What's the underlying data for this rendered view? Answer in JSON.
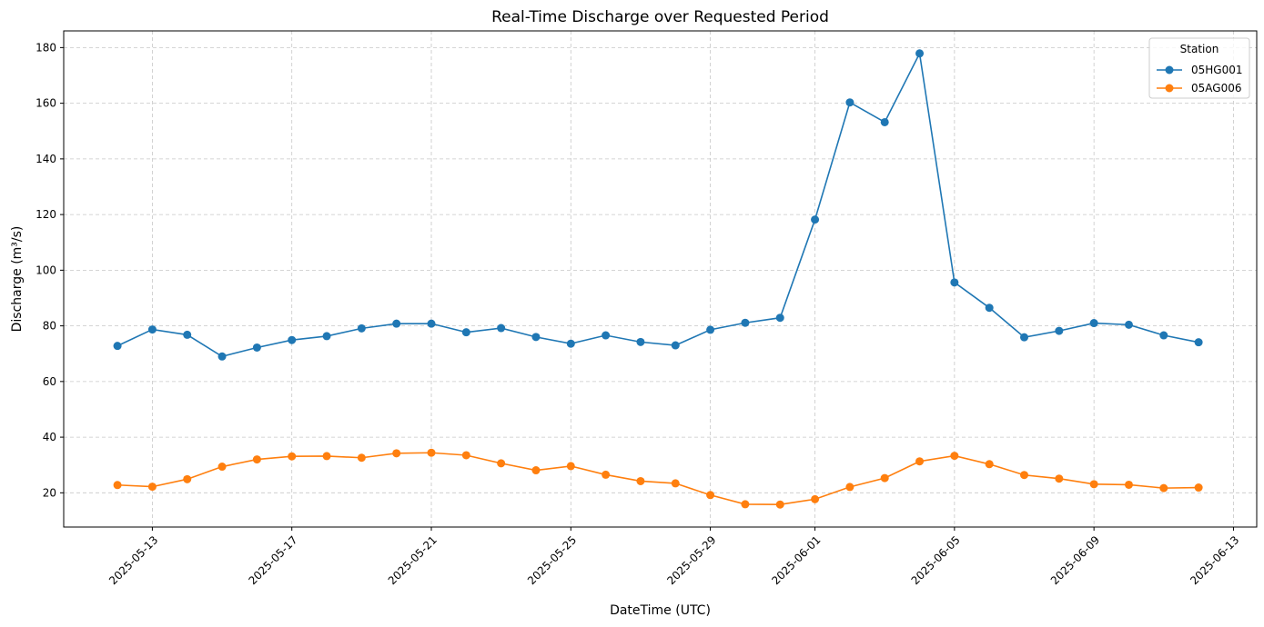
{
  "chart_data": {
    "type": "line",
    "title": "Real-Time Discharge over Requested Period",
    "xlabel": "DateTime (UTC)",
    "ylabel": "Discharge (m³/s)",
    "x": [
      "2025-05-12",
      "2025-05-13",
      "2025-05-14",
      "2025-05-15",
      "2025-05-16",
      "2025-05-17",
      "2025-05-18",
      "2025-05-19",
      "2025-05-20",
      "2025-05-21",
      "2025-05-22",
      "2025-05-23",
      "2025-05-24",
      "2025-05-25",
      "2025-05-26",
      "2025-05-27",
      "2025-05-28",
      "2025-05-29",
      "2025-05-30",
      "2025-05-31",
      "2025-06-01",
      "2025-06-02",
      "2025-06-03",
      "2025-06-04",
      "2025-06-05",
      "2025-06-06",
      "2025-06-07",
      "2025-06-08",
      "2025-06-09",
      "2025-06-10",
      "2025-06-11",
      "2025-06-12"
    ],
    "series": [
      {
        "name": "05HG001",
        "color": "#1f77b4",
        "values": [
          72.8,
          78.7,
          76.8,
          69.0,
          72.2,
          74.9,
          76.3,
          79.1,
          80.8,
          80.8,
          77.7,
          79.2,
          76.0,
          73.6,
          76.6,
          74.2,
          73.0,
          78.6,
          81.1,
          82.9,
          118.2,
          160.3,
          153.2,
          177.9,
          95.6,
          86.5,
          75.9,
          78.2,
          81.0,
          80.4,
          76.6,
          74.1
        ]
      },
      {
        "name": "05AG006",
        "color": "#ff7f0e",
        "values": [
          22.8,
          22.2,
          24.9,
          29.4,
          32.0,
          33.1,
          33.2,
          32.6,
          34.2,
          34.4,
          33.5,
          30.6,
          28.1,
          29.6,
          26.5,
          24.2,
          23.4,
          19.2,
          15.9,
          15.8,
          17.7,
          22.1,
          25.3,
          31.3,
          33.3,
          30.3,
          26.4,
          25.1,
          23.1,
          22.9,
          21.7,
          21.9
        ]
      }
    ],
    "x_ticks": [
      "2025-05-13",
      "2025-05-17",
      "2025-05-21",
      "2025-05-25",
      "2025-05-29",
      "2025-06-01",
      "2025-06-05",
      "2025-06-09",
      "2025-06-13"
    ],
    "xlim": [
      "2025-05-10T11:00",
      "2025-06-13T16:00"
    ],
    "y_ticks": [
      20,
      40,
      60,
      80,
      100,
      120,
      140,
      160,
      180
    ],
    "ylim": [
      7.7,
      186.0
    ],
    "grid": true,
    "legend": {
      "title": "Station",
      "placement": "top-right"
    }
  }
}
